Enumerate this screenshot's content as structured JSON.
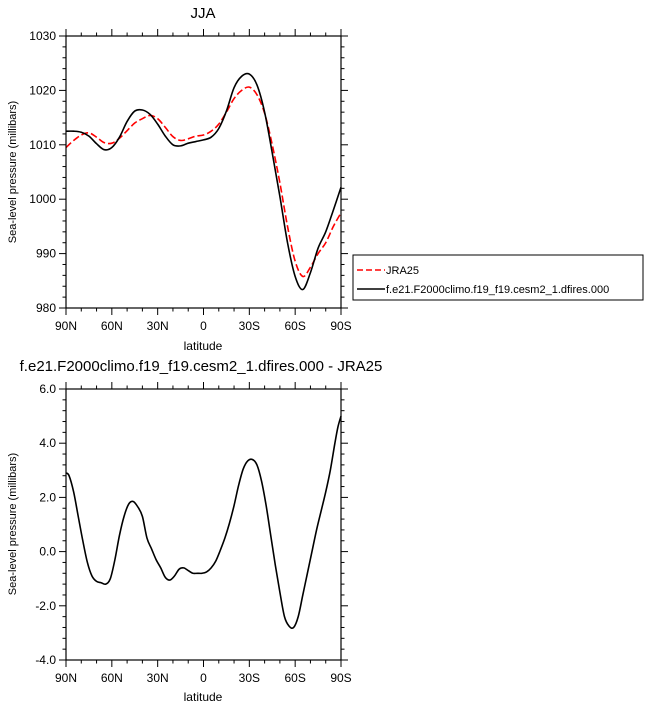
{
  "chart_data": [
    {
      "type": "line",
      "title": "JJA",
      "xlabel": "latitude",
      "ylabel": "Sea-level pressure (millibars)",
      "x_direction": "90N to 90S",
      "xlim": [
        90,
        -90
      ],
      "ylim": [
        980,
        1030
      ],
      "x_tick_values": [
        90,
        60,
        30,
        0,
        -30,
        -60,
        -90
      ],
      "x_tick_labels": [
        "90N",
        "60N",
        "30N",
        "0",
        "30S",
        "60S",
        "90S"
      ],
      "y_tick_values": [
        980,
        990,
        1000,
        1010,
        1020,
        1030
      ],
      "y_tick_labels": [
        "980",
        "990",
        "1000",
        "1010",
        "1020",
        "1030"
      ],
      "grid": false,
      "legend_placement": "outside-right",
      "series": [
        {
          "name": "JRA25",
          "color": "#ff0000",
          "style": "dashed",
          "x": [
            90,
            85,
            80,
            75,
            70,
            65,
            60,
            55,
            50,
            45,
            40,
            35,
            30,
            25,
            20,
            15,
            10,
            5,
            0,
            -5,
            -10,
            -15,
            -20,
            -25,
            -30,
            -35,
            -40,
            -45,
            -50,
            -55,
            -60,
            -65,
            -70,
            -75,
            -80,
            -85,
            -90
          ],
          "y": [
            1009.5,
            1010.8,
            1011.8,
            1012.2,
            1011.4,
            1010.4,
            1010.3,
            1011.2,
            1012.6,
            1014.0,
            1014.8,
            1015.4,
            1014.8,
            1013.2,
            1011.5,
            1010.8,
            1011.1,
            1011.6,
            1011.8,
            1012.5,
            1013.8,
            1016.0,
            1018.5,
            1020.0,
            1020.6,
            1019.2,
            1015.8,
            1010.0,
            1003.0,
            995.0,
            988.6,
            985.8,
            987.5,
            990.0,
            992.0,
            995.0,
            997.5
          ]
        },
        {
          "name": "f.e21.F2000climo.f19_f19.cesm2_1.dfires.000",
          "color": "#000000",
          "style": "solid",
          "x": [
            90,
            85,
            80,
            75,
            70,
            65,
            60,
            55,
            50,
            45,
            40,
            35,
            30,
            25,
            20,
            15,
            10,
            5,
            0,
            -5,
            -10,
            -15,
            -20,
            -25,
            -30,
            -35,
            -40,
            -45,
            -50,
            -55,
            -60,
            -65,
            -70,
            -75,
            -80,
            -85,
            -90
          ],
          "y": [
            1012.5,
            1012.5,
            1012.3,
            1011.6,
            1010.2,
            1009.1,
            1009.5,
            1011.4,
            1014.3,
            1016.2,
            1016.4,
            1015.6,
            1013.8,
            1011.6,
            1010.0,
            1009.8,
            1010.3,
            1010.6,
            1010.9,
            1011.4,
            1013.0,
            1016.2,
            1020.5,
            1022.6,
            1023.0,
            1021.0,
            1016.0,
            1008.5,
            1000.5,
            992.0,
            985.8,
            983.4,
            986.5,
            991.0,
            994.0,
            998.0,
            1002.2
          ]
        }
      ]
    },
    {
      "type": "line",
      "title": "f.e21.F2000climo.f19_f19.cesm2_1.dfires.000 - JRA25",
      "xlabel": "latitude",
      "ylabel": "Sea-level pressure (millibars)",
      "x_direction": "90N to 90S",
      "xlim": [
        90,
        -90
      ],
      "ylim": [
        -4.0,
        6.0
      ],
      "x_tick_values": [
        90,
        60,
        30,
        0,
        -30,
        -60,
        -90
      ],
      "x_tick_labels": [
        "90N",
        "60N",
        "30N",
        "0",
        "30S",
        "60S",
        "90S"
      ],
      "y_tick_values": [
        -4.0,
        -2.0,
        0.0,
        2.0,
        4.0,
        6.0
      ],
      "y_tick_labels": [
        "-4.0",
        "-2.0",
        "0.0",
        "2.0",
        "4.0",
        "6.0"
      ],
      "grid": false,
      "series": [
        {
          "color": "#000000",
          "style": "solid",
          "x": [
            90,
            88,
            85,
            82,
            79,
            76,
            73,
            70,
            67,
            64,
            61,
            58,
            55,
            52,
            49,
            46,
            43,
            40,
            37,
            34,
            31,
            28,
            25,
            22,
            19,
            16,
            13,
            10,
            7,
            4,
            1,
            -2,
            -5,
            -8,
            -11,
            -14,
            -17,
            -20,
            -23,
            -26,
            -29,
            -32,
            -35,
            -38,
            -41,
            -44,
            -47,
            -50,
            -53,
            -56,
            -59,
            -62,
            -65,
            -68,
            -71,
            -74,
            -77,
            -80,
            -83,
            -86,
            -88,
            -90
          ],
          "y": [
            2.9,
            2.8,
            2.2,
            1.3,
            0.4,
            -0.4,
            -0.9,
            -1.1,
            -1.15,
            -1.2,
            -1.0,
            -0.3,
            0.6,
            1.3,
            1.75,
            1.85,
            1.65,
            1.3,
            0.5,
            0.1,
            -0.3,
            -0.6,
            -0.95,
            -1.05,
            -0.9,
            -0.65,
            -0.6,
            -0.7,
            -0.8,
            -0.8,
            -0.8,
            -0.75,
            -0.6,
            -0.35,
            0.05,
            0.5,
            1.05,
            1.7,
            2.45,
            3.05,
            3.35,
            3.4,
            3.2,
            2.6,
            1.7,
            0.6,
            -0.5,
            -1.5,
            -2.4,
            -2.75,
            -2.8,
            -2.4,
            -1.6,
            -0.8,
            0.0,
            0.8,
            1.5,
            2.2,
            3.0,
            4.0,
            4.6,
            5.0
          ]
        }
      ]
    }
  ]
}
